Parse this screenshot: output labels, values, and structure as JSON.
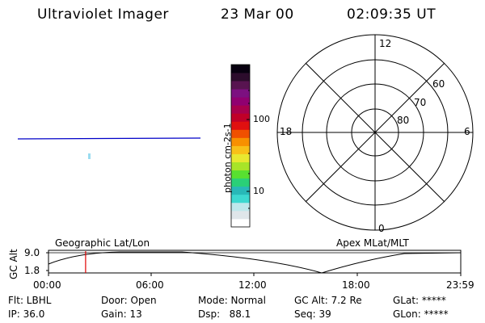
{
  "header": {
    "instrument": "Ultraviolet Imager",
    "date": "23 Mar 00",
    "time": "02:09:35 UT"
  },
  "colorbar": {
    "unit_label": "photon cm-2s-1",
    "tick_100": "100",
    "tick_10": "10",
    "colors": [
      "#ffffff",
      "#dfe6ea",
      "#bfe8ec",
      "#3dd8d0",
      "#28b8b8",
      "#2ad078",
      "#58e030",
      "#a8e428",
      "#e8e830",
      "#f8c018",
      "#f89000",
      "#f05000",
      "#e01010",
      "#c00028",
      "#a8004c",
      "#900070",
      "#7c1080",
      "#581450",
      "#2c0c2c",
      "#080010"
    ]
  },
  "polar_plot": {
    "labels": [
      "12",
      "60",
      "70",
      "80",
      "18",
      "6",
      "0"
    ]
  },
  "timeline": {
    "y_axis_title": "GC Alt",
    "y_ticks": [
      "9.0",
      "1.8"
    ],
    "left_label": "Geographic Lat/Lon",
    "right_label": "Apex MLat/MLT",
    "x_ticks": [
      "00:00",
      "06:00",
      "12:00",
      "18:00",
      "23:59"
    ],
    "marker_time_hours": 2.16
  },
  "status": {
    "flt": "Flt: LBHL",
    "ip": "IP: 36.0",
    "door": "Door: Open",
    "gain": "Gain: 13",
    "mode": "Mode: Normal",
    "dsp": "Dsp:   88.1",
    "gcalt": "GC Alt: 7.2 Re",
    "seq": "Seq: 39",
    "glat": "GLat: *****",
    "glon": "GLon: *****"
  },
  "colors": {
    "line": "#0000c8",
    "marker": "#e00000",
    "text": "#000000"
  }
}
